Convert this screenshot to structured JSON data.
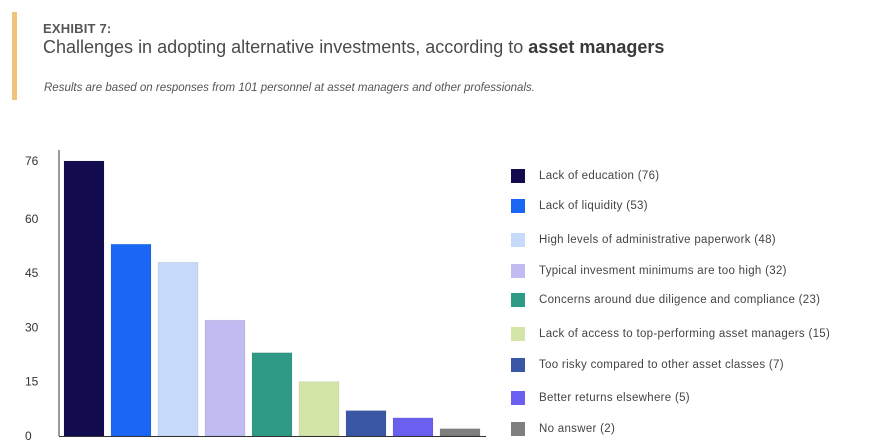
{
  "header": {
    "exhibit": "EXHIBIT 7:",
    "title_prefix": "Challenges in adopting alternative investments, according to ",
    "title_emphasis": "asset managers",
    "subtitle": "Results are based on responses from 101 personnel at asset managers and other professionals."
  },
  "colors": {
    "accent": "#f0c27b"
  },
  "chart_data": {
    "type": "bar",
    "categories": [
      "Lack of education",
      "Lack of liquidity",
      "High levels of administrative paperwork",
      "Typical invesment minimums are too high",
      "Concerns around due diligence and compliance",
      "Lack of access to top-performing asset managers",
      "Too risky compared to other asset classes",
      "Better returns elsewhere",
      "No answer"
    ],
    "values": [
      76,
      53,
      48,
      32,
      23,
      15,
      7,
      5,
      2
    ],
    "colors": [
      "#120c4f",
      "#1b67f5",
      "#c8daf9",
      "#c0bcf2",
      "#2f9b86",
      "#d4e5a8",
      "#3a57a6",
      "#6b5ff0",
      "#7f7f7f"
    ],
    "ylim": [
      0,
      78
    ],
    "yticks": [
      0,
      15,
      30,
      45,
      60,
      76
    ],
    "legend": [
      "Lack of education (76)",
      "Lack of liquidity (53)",
      "High levels of administrative paperwork (48)",
      "Typical invesment minimums are too high (32)",
      "Concerns around due diligence and compliance (23)",
      "Lack of access to top-performing asset managers (15)",
      "Too risky compared to other asset classes (7)",
      "Better returns elsewhere (5)",
      "No answer (2)"
    ],
    "legend_position": "right",
    "grid": false,
    "xlabel": "",
    "ylabel": ""
  }
}
